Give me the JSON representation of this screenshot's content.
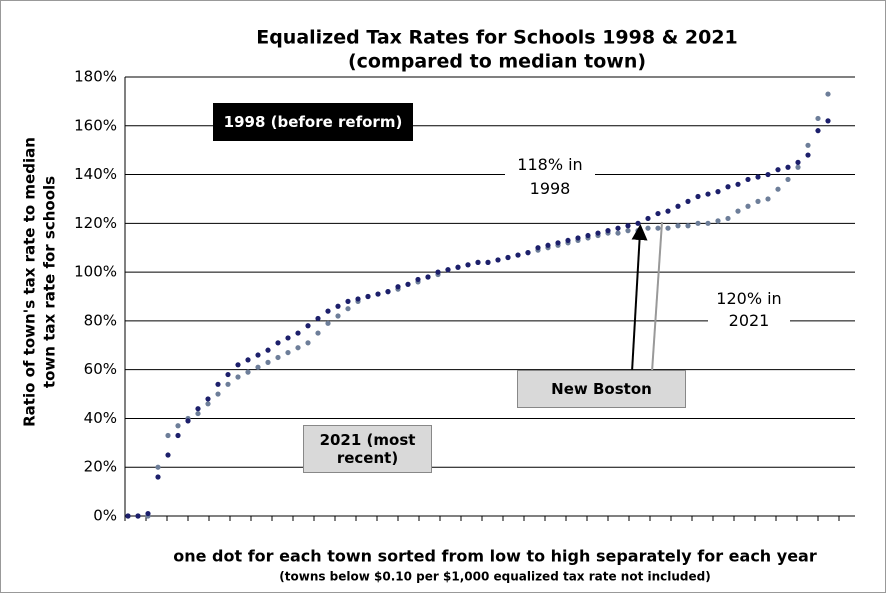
{
  "chart_data": {
    "type": "scatter",
    "title": [
      "Equalized Tax Rates for Schools 1998 & 2021",
      "(compared to median town)"
    ],
    "ylabel": [
      "Ratio of town's tax rate to median",
      "town tax rate for schools"
    ],
    "xlabel": "one dot for each town sorted from low to high separately for each year",
    "note": "(towns below $0.10 per $1,000 equalized tax rate not included)",
    "ylim": [
      0,
      180
    ],
    "yticks": [
      {
        "value": 0,
        "label": "0%"
      },
      {
        "value": 20,
        "label": "20%"
      },
      {
        "value": 40,
        "label": "40%"
      },
      {
        "value": 60,
        "label": "60%"
      },
      {
        "value": 80,
        "label": "80%"
      },
      {
        "value": 100,
        "label": "100%"
      },
      {
        "value": 120,
        "label": "120%"
      },
      {
        "value": 140,
        "label": "140%"
      },
      {
        "value": 160,
        "label": "160%"
      },
      {
        "value": 180,
        "label": "180%"
      }
    ],
    "grid": true,
    "series": [
      {
        "name": "1998 (before reform)",
        "color": "#1c1f6b",
        "values": [
          0,
          0,
          1,
          16,
          25,
          33,
          39,
          44,
          48,
          54,
          58,
          62,
          64,
          66,
          68,
          71,
          73,
          75,
          78,
          81,
          84,
          86,
          88,
          89,
          90,
          91,
          92,
          94,
          95,
          97,
          98,
          100,
          101,
          102,
          103,
          104,
          104,
          105,
          106,
          107,
          108,
          110,
          111,
          112,
          113,
          114,
          115,
          116,
          117,
          118,
          119,
          120,
          122,
          124,
          125,
          127,
          129,
          131,
          132,
          133,
          135,
          136,
          138,
          139,
          140,
          142,
          143,
          145,
          148,
          158,
          162
        ]
      },
      {
        "name": "2021 (most recent)",
        "color": "#6d7e99",
        "values": [
          0,
          0,
          0,
          20,
          33,
          37,
          40,
          42,
          46,
          50,
          54,
          57,
          59,
          61,
          63,
          65,
          67,
          69,
          71,
          75,
          79,
          82,
          85,
          88,
          90,
          91,
          92,
          93,
          95,
          96,
          98,
          99,
          101,
          102,
          103,
          104,
          104,
          105,
          106,
          107,
          108,
          109,
          110,
          111,
          112,
          113,
          114,
          115,
          116,
          116,
          117,
          117,
          118,
          118,
          118,
          119,
          119,
          120,
          120,
          121,
          122,
          125,
          127,
          129,
          130,
          134,
          138,
          143,
          152,
          163,
          173
        ]
      }
    ],
    "annotations": [
      {
        "label": "New Boston"
      },
      {
        "label": "118% in 1998"
      },
      {
        "label": "120% in 2021"
      }
    ]
  }
}
